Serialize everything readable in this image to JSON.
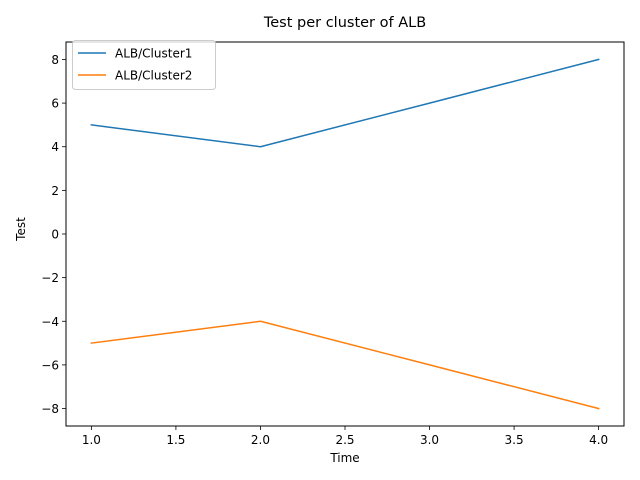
{
  "chart_data": {
    "type": "line",
    "title": "Test per cluster of ALB",
    "xlabel": "Time",
    "ylabel": "Test",
    "x": [
      1,
      2,
      3,
      4
    ],
    "series": [
      {
        "name": "ALB/Cluster1",
        "values": [
          5,
          4,
          6,
          8
        ],
        "color": "#1f77b4"
      },
      {
        "name": "ALB/Cluster2",
        "values": [
          -5,
          -4,
          -6,
          -8
        ],
        "color": "#ff7f0e"
      }
    ],
    "xlim": [
      0.85,
      4.15
    ],
    "ylim": [
      -8.8,
      8.8
    ],
    "xticks": [
      1.0,
      1.5,
      2.0,
      2.5,
      3.0,
      3.5,
      4.0
    ],
    "xtick_labels": [
      "1.0",
      "1.5",
      "2.0",
      "2.5",
      "3.0",
      "3.5",
      "4.0"
    ],
    "yticks": [
      -8,
      -6,
      -4,
      -2,
      0,
      2,
      4,
      6,
      8
    ],
    "ytick_labels": [
      "−8",
      "−6",
      "−4",
      "−2",
      "0",
      "2",
      "4",
      "6",
      "8"
    ],
    "grid": false,
    "legend_position": "top-left"
  }
}
